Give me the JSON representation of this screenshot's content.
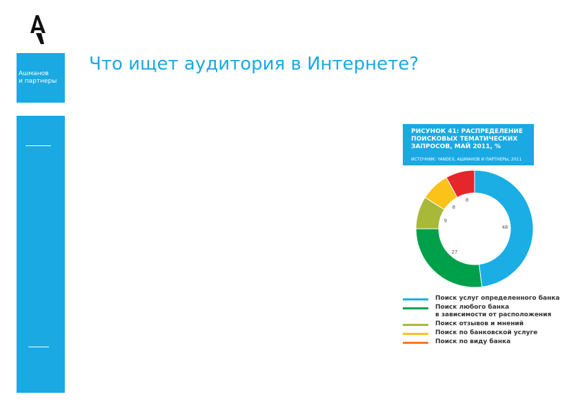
{
  "brand": {
    "line1": "Ашманов",
    "line2": "и партнеры",
    "logo_icon": "arrow-a-logo"
  },
  "page": {
    "title": "Что ищет аудитория в Интернете?"
  },
  "figure": {
    "title": "РИСУНОК 41: РАСПРЕДЕЛЕНИЕ ПОИСКОВЫХ ТЕМАТИЧЕСКИХ ЗАПРОСОВ, МАЙ 2011, %",
    "source": "ИСТОЧНИК: YANDEX, АШМАНОВ И ПАРТНЕРЫ, 2011"
  },
  "colors": {
    "accent": "#1aa9e3"
  },
  "chart_data": {
    "type": "pie",
    "title": "РИСУНОК 41: РАСПРЕДЕЛЕНИЕ ПОИСКОВЫХ ТЕМАТИЧЕСКИХ ЗАПРОСОВ, МАЙ 2011, %",
    "categories": [
      "Поиск услуг определенного банка",
      "Поиск любого банка в зависимости от расположения",
      "Поиск отзывов и мнений",
      "Поиск по банковской услуге",
      "Поиск по виду банка"
    ],
    "values": [
      48,
      27,
      9,
      8,
      8
    ],
    "value_labels": [
      "48",
      "27",
      "9",
      "8",
      "8"
    ],
    "colors": [
      "#1aaee5",
      "#00a04a",
      "#a8b93a",
      "#fbc21a",
      "#e5262b"
    ],
    "legend_colors": [
      "#1aaee5",
      "#00a04a",
      "#a8b93a",
      "#fbc21a",
      "#f47920"
    ],
    "legend_position": "bottom"
  }
}
